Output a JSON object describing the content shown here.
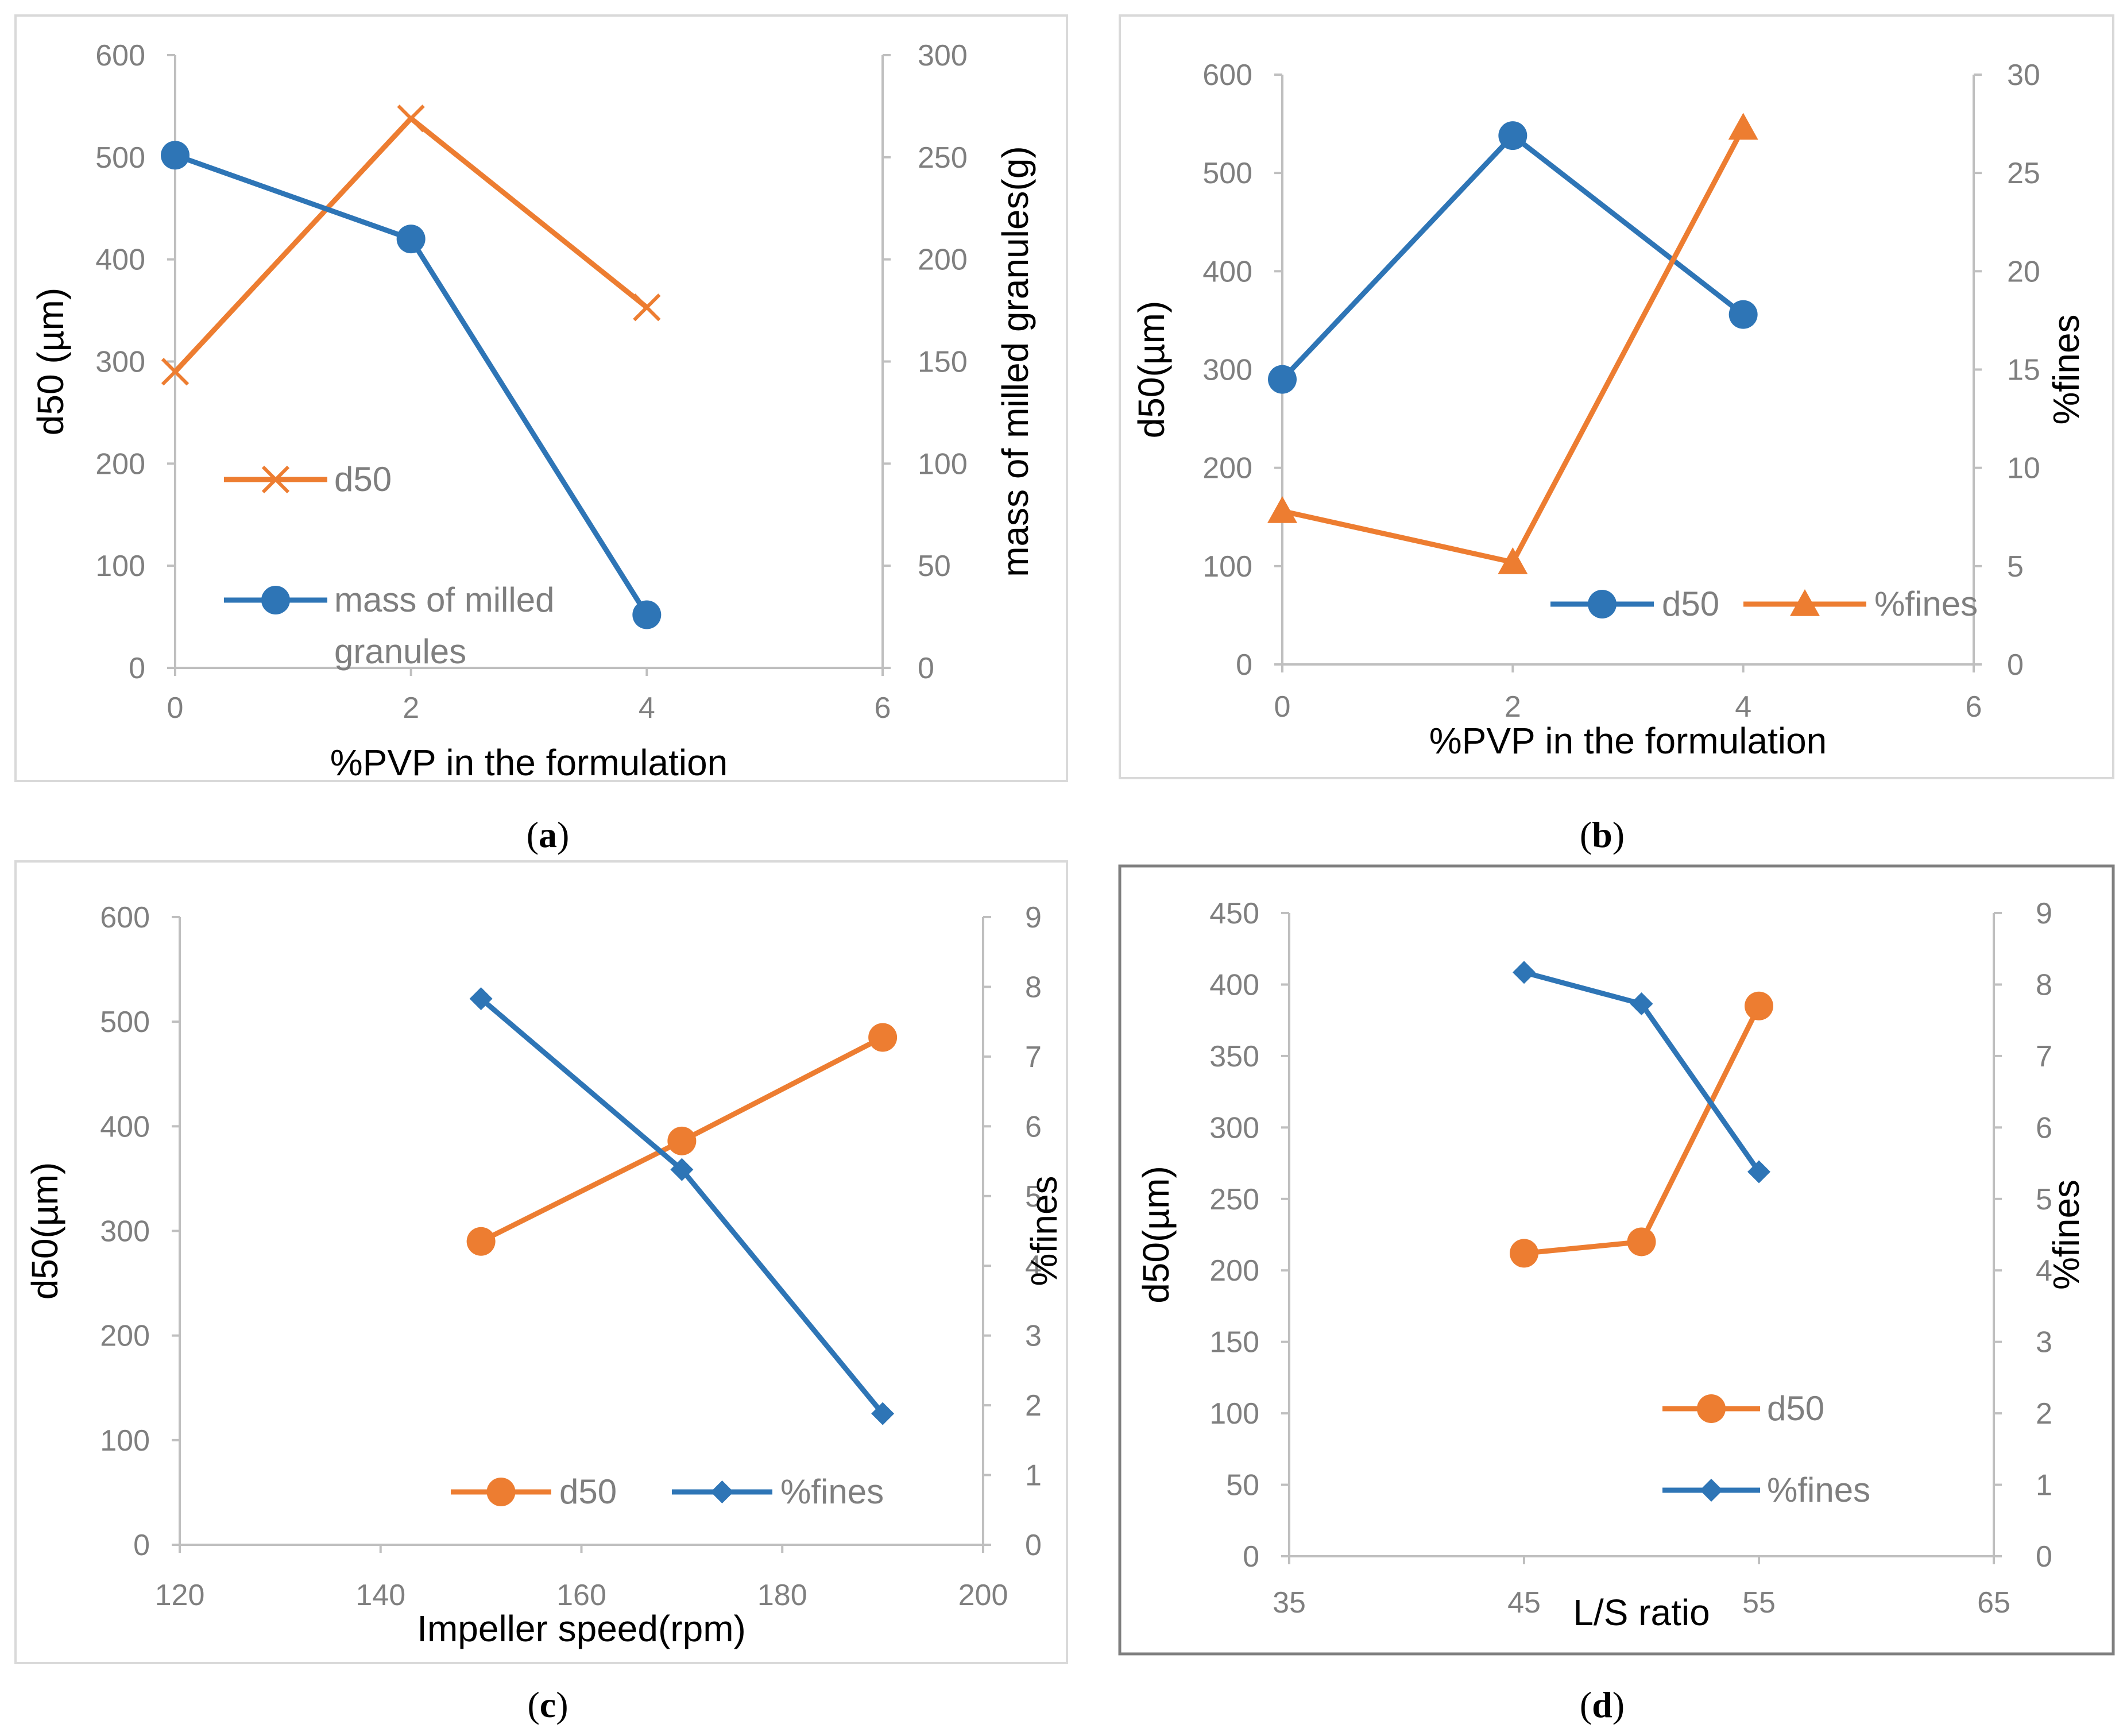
{
  "colors": {
    "blue": "#2e75b6",
    "orange": "#ed7d31",
    "axis": "#bfbfbf",
    "tick": "#7f7f7f",
    "frame": "#d9d9d9"
  },
  "chart_data": [
    {
      "id": "a",
      "type": "line",
      "caption": "a",
      "xlabel": "%PVP in the formulation",
      "ylabel": "d50 (µm)",
      "y2label": "mass of milled granules(g)",
      "xlim": [
        0,
        6
      ],
      "xticks": [
        0,
        2,
        4,
        6
      ],
      "ylim": [
        0,
        600
      ],
      "yticks": [
        0,
        100,
        200,
        300,
        400,
        500,
        600
      ],
      "y2lim": [
        0,
        300
      ],
      "y2ticks": [
        0,
        50,
        100,
        150,
        200,
        250,
        300
      ],
      "legend_position": "inside-left",
      "series": [
        {
          "name": "d50",
          "axis": "left",
          "color": "#ed7d31",
          "marker": "x",
          "x": [
            0,
            2,
            4
          ],
          "values": [
            290,
            538,
            353
          ]
        },
        {
          "name": "mass of milled granules",
          "axis": "right",
          "color": "#2e75b6",
          "marker": "circle",
          "x": [
            0,
            2,
            4
          ],
          "values": [
            251,
            210,
            26
          ]
        }
      ]
    },
    {
      "id": "b",
      "type": "line",
      "caption": "b",
      "xlabel": "%PVP in the formulation",
      "ylabel": "d50(µm)",
      "y2label": "%fines",
      "xlim": [
        0,
        6
      ],
      "xticks": [
        0,
        2,
        4,
        6
      ],
      "ylim": [
        0,
        600
      ],
      "yticks": [
        0,
        100,
        200,
        300,
        400,
        500,
        600
      ],
      "y2lim": [
        0,
        30
      ],
      "y2ticks": [
        0,
        5,
        10,
        15,
        20,
        25,
        30
      ],
      "legend_position": "bottom-right",
      "series": [
        {
          "name": "d50",
          "axis": "left",
          "color": "#2e75b6",
          "marker": "circle",
          "x": [
            0,
            2,
            4
          ],
          "values": [
            290,
            538,
            356
          ]
        },
        {
          "name": "%fines",
          "axis": "right",
          "color": "#ed7d31",
          "marker": "triangle",
          "x": [
            0,
            2,
            4
          ],
          "values": [
            7.8,
            5.2,
            27.3
          ]
        }
      ]
    },
    {
      "id": "c",
      "type": "line",
      "caption": "c",
      "xlabel": "Impeller speed(rpm)",
      "ylabel": "d50(µm)",
      "y2label": "%fines",
      "xlim": [
        120,
        200
      ],
      "xticks": [
        120,
        140,
        160,
        180,
        200
      ],
      "ylim": [
        0,
        600
      ],
      "yticks": [
        0,
        100,
        200,
        300,
        400,
        500,
        600
      ],
      "y2lim": [
        0,
        9
      ],
      "y2ticks": [
        0,
        1,
        2,
        3,
        4,
        5,
        6,
        7,
        8,
        9
      ],
      "legend_position": "bottom-right",
      "series": [
        {
          "name": "d50",
          "axis": "left",
          "color": "#ed7d31",
          "marker": "circle",
          "x": [
            150,
            170,
            190
          ],
          "values": [
            290,
            386,
            485
          ]
        },
        {
          "name": "%fines",
          "axis": "right",
          "color": "#2e75b6",
          "marker": "diamond",
          "x": [
            150,
            170,
            190
          ],
          "values": [
            7.83,
            5.38,
            1.88
          ]
        }
      ]
    },
    {
      "id": "d",
      "type": "line",
      "caption": "d",
      "xlabel": "L/S ratio",
      "ylabel": "d50(µm)",
      "y2label": "%fines",
      "xlim": [
        35,
        65
      ],
      "xticks": [
        35,
        45,
        55,
        65
      ],
      "ylim": [
        0,
        450
      ],
      "yticks": [
        0,
        50,
        100,
        150,
        200,
        250,
        300,
        350,
        400,
        450
      ],
      "y2lim": [
        0,
        9
      ],
      "y2ticks": [
        0,
        1,
        2,
        3,
        4,
        5,
        6,
        7,
        8,
        9
      ],
      "legend_position": "bottom-right",
      "series": [
        {
          "name": "d50",
          "axis": "left",
          "color": "#ed7d31",
          "marker": "circle",
          "x": [
            45,
            50,
            55
          ],
          "values": [
            212,
            220,
            385
          ]
        },
        {
          "name": "%fines",
          "axis": "right",
          "color": "#2e75b6",
          "marker": "diamond",
          "x": [
            45,
            50,
            55
          ],
          "values": [
            8.17,
            7.73,
            5.38
          ]
        }
      ]
    }
  ]
}
